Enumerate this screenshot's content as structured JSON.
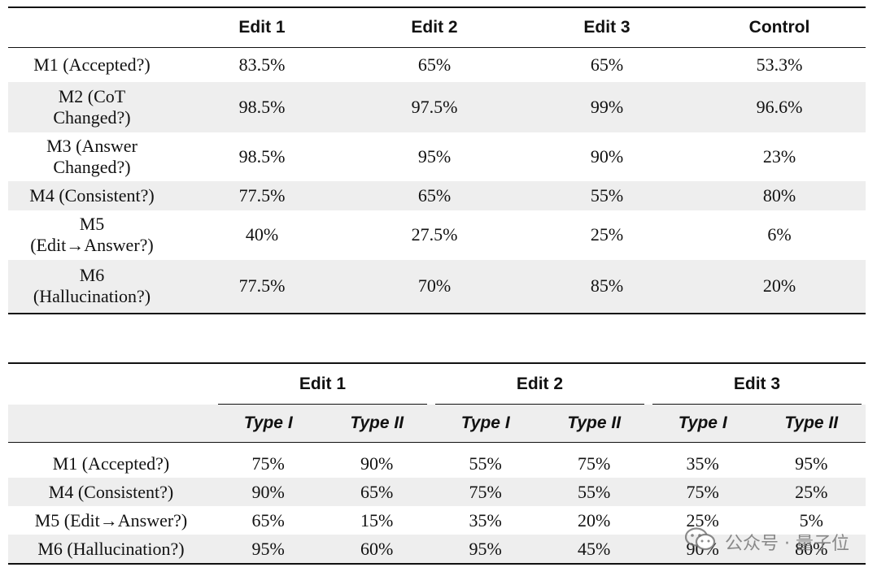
{
  "table1": {
    "headers": [
      "",
      "Edit 1",
      "Edit 2",
      "Edit 3",
      "Control"
    ],
    "rows": [
      {
        "label": [
          "M1 (Accepted?)"
        ],
        "values": [
          "83.5%",
          "65%",
          "65%",
          "53.3%"
        ],
        "shaded": false
      },
      {
        "label": [
          "M2 (CoT",
          "Changed?)"
        ],
        "values": [
          "98.5%",
          "97.5%",
          "99%",
          "96.6%"
        ],
        "shaded": true
      },
      {
        "label": [
          "M3 (Answer",
          "Changed?)"
        ],
        "values": [
          "98.5%",
          "95%",
          "90%",
          "23%"
        ],
        "shaded": false
      },
      {
        "label": [
          "M4 (Consistent?)"
        ],
        "values": [
          "77.5%",
          "65%",
          "55%",
          "80%"
        ],
        "shaded": true
      },
      {
        "label": [
          "M5",
          "(Edit→Answer?)"
        ],
        "values": [
          "40%",
          "27.5%",
          "25%",
          "6%"
        ],
        "shaded": false
      },
      {
        "label": [
          "M6",
          "(Hallucination?)"
        ],
        "values": [
          "77.5%",
          "70%",
          "85%",
          "20%"
        ],
        "shaded": true
      }
    ]
  },
  "table2": {
    "groups": [
      "Edit 1",
      "Edit 2",
      "Edit 3"
    ],
    "subheaders": [
      "Type I",
      "Type II",
      "Type I",
      "Type II",
      "Type I",
      "Type II"
    ],
    "rows": [
      {
        "label": "M1 (Accepted?)",
        "values": [
          "75%",
          "90%",
          "55%",
          "75%",
          "35%",
          "95%"
        ],
        "shaded": false
      },
      {
        "label": "M4 (Consistent?)",
        "values": [
          "90%",
          "65%",
          "75%",
          "55%",
          "75%",
          "25%"
        ],
        "shaded": true
      },
      {
        "label": "M5 (Edit→Answer?)",
        "values": [
          "65%",
          "15%",
          "35%",
          "20%",
          "25%",
          "5%"
        ],
        "shaded": false
      },
      {
        "label": "M6 (Hallucination?)",
        "values": [
          "95%",
          "60%",
          "95%",
          "45%",
          "90%",
          "80%"
        ],
        "shaded": true
      }
    ]
  },
  "watermark": {
    "icon": "wechat-icon",
    "text": "公众号 · 量子位"
  }
}
